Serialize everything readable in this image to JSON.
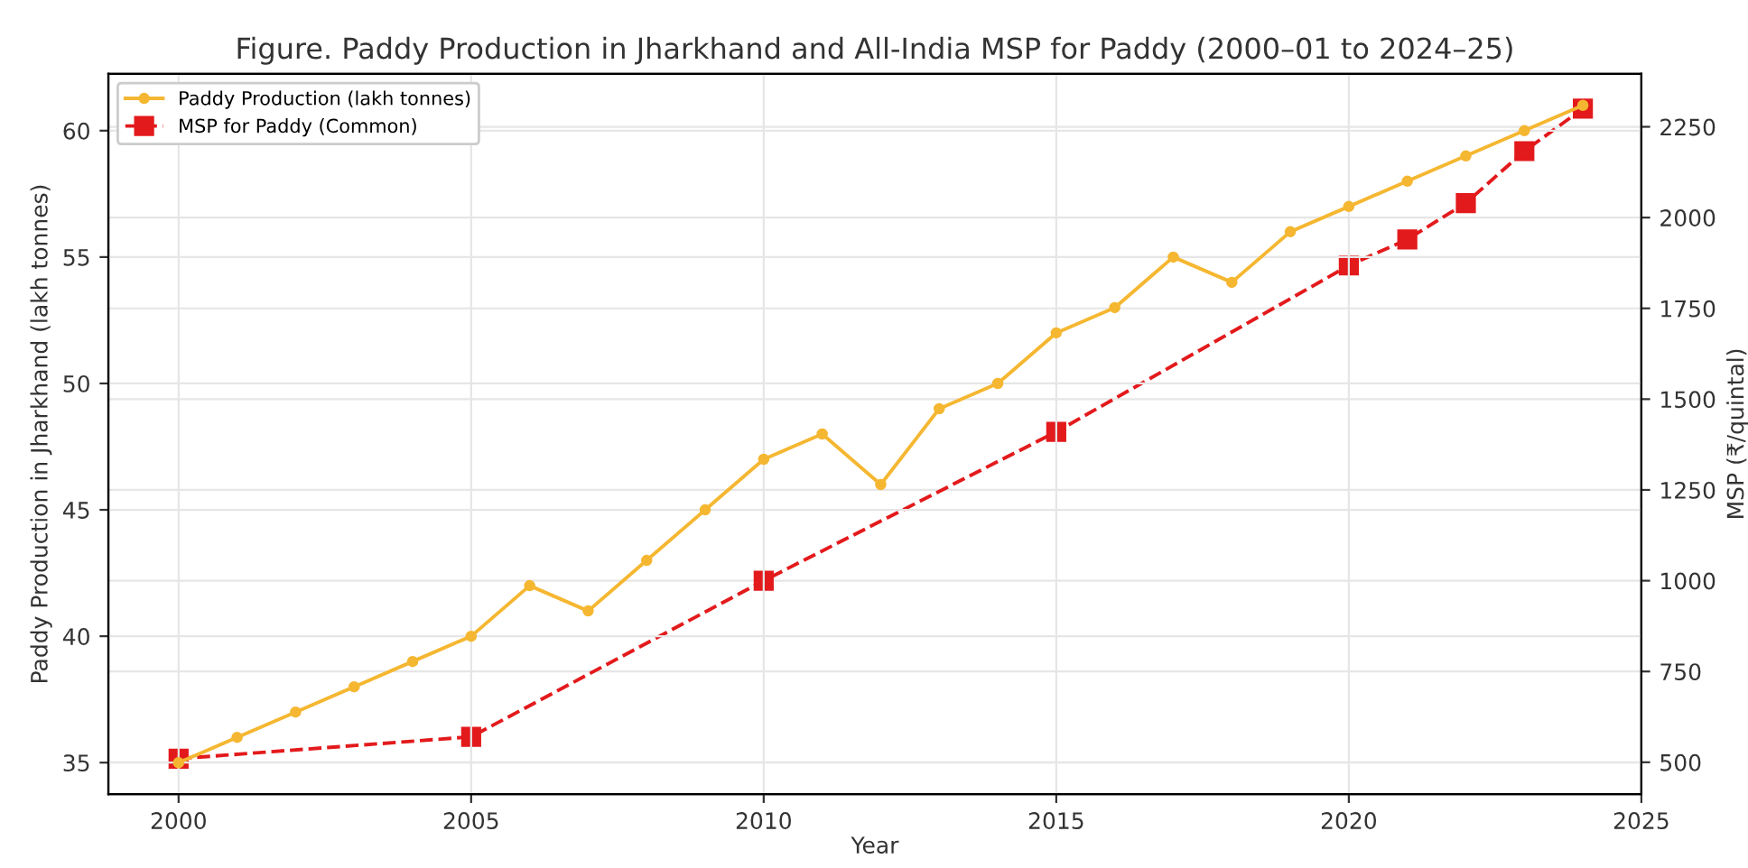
{
  "chart_data": {
    "type": "line",
    "title": "Figure. Paddy Production in Jharkhand and All-India MSP for Paddy (2000–01 to 2024–25)",
    "xlabel": "Year",
    "ylabel": "Paddy Production in Jharkhand (lakh tonnes)",
    "y2label": "MSP (₹/quintal)",
    "xlim": [
      1998.8,
      2025
    ],
    "xticks": [
      2000,
      2005,
      2010,
      2015,
      2020,
      2025
    ],
    "ylim": [
      33.75,
      62.25
    ],
    "yticks": [
      35,
      40,
      45,
      50,
      55,
      60
    ],
    "y2lim": [
      412,
      2396
    ],
    "y2ticks": [
      500,
      750,
      1000,
      1250,
      1500,
      1750,
      2000,
      2250
    ],
    "grid": true,
    "legend": "top left",
    "series": [
      {
        "name": "Paddy Production (lakh tonnes)",
        "color": "#f5b731",
        "marker": "circle",
        "line_style": "solid",
        "x": [
          2000,
          2001,
          2002,
          2003,
          2004,
          2005,
          2006,
          2007,
          2008,
          2009,
          2010,
          2011,
          2012,
          2013,
          2014,
          2015,
          2016,
          2017,
          2018,
          2019,
          2020,
          2021,
          2022,
          2023,
          2024
        ],
        "values": [
          35,
          36,
          37,
          38,
          39,
          40,
          42,
          41,
          43,
          45,
          47,
          48,
          46,
          49,
          50,
          52,
          53,
          55,
          54,
          56,
          57,
          58,
          59,
          60,
          61
        ]
      },
      {
        "name": "MSP for Paddy (Common)",
        "color": "#e31a1c",
        "marker": "square",
        "line_style": "dashed",
        "axis": "y2",
        "x": [
          2000,
          2005,
          2010,
          2015,
          2020,
          2021,
          2022,
          2023,
          2024
        ],
        "values": [
          510,
          570,
          1000,
          1410,
          1868,
          1940,
          2040,
          2183,
          2300
        ]
      }
    ]
  }
}
